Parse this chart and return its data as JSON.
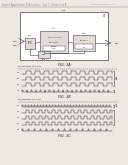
{
  "bg_color": "#ece9e3",
  "line_color": "#444444",
  "text_color": "#222222",
  "gray_text": "#888888",
  "waveform_color": "#333333",
  "box_fill": "#e0ddd8",
  "white": "#ffffff"
}
